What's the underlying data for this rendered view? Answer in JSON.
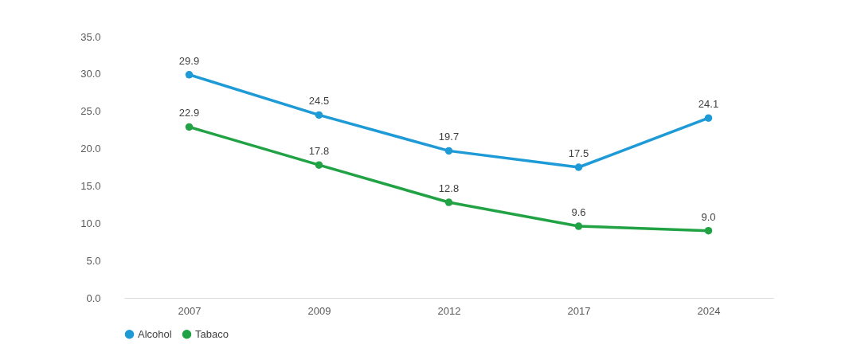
{
  "chart_data": {
    "type": "line",
    "categories": [
      "2007",
      "2009",
      "2012",
      "2017",
      "2024"
    ],
    "series": [
      {
        "name": "Alcohol",
        "color": "#1e9ad6",
        "values": [
          29.9,
          24.5,
          19.7,
          17.5,
          24.1
        ],
        "value_labels": [
          "29.9",
          "24.5",
          "19.7",
          "17.5",
          "24.1"
        ]
      },
      {
        "name": "Tabaco",
        "color": "#21a244",
        "values": [
          22.9,
          17.8,
          12.8,
          9.6,
          9.0
        ],
        "value_labels": [
          "22.9",
          "17.8",
          "12.8",
          "9.6",
          "9.0"
        ]
      }
    ],
    "ylim": [
      0,
      35
    ],
    "yticks": [
      {
        "value": 0,
        "label": "0.0"
      },
      {
        "value": 5,
        "label": "5.0"
      },
      {
        "value": 10,
        "label": "10.0"
      },
      {
        "value": 15,
        "label": "15.0"
      },
      {
        "value": 20,
        "label": "20.0"
      },
      {
        "value": 25,
        "label": "25.0"
      },
      {
        "value": 30,
        "label": "30.0"
      },
      {
        "value": 35,
        "label": "35.0"
      }
    ],
    "grid": false,
    "legend": "bottom",
    "marker": "circle",
    "line_style": "solid"
  }
}
